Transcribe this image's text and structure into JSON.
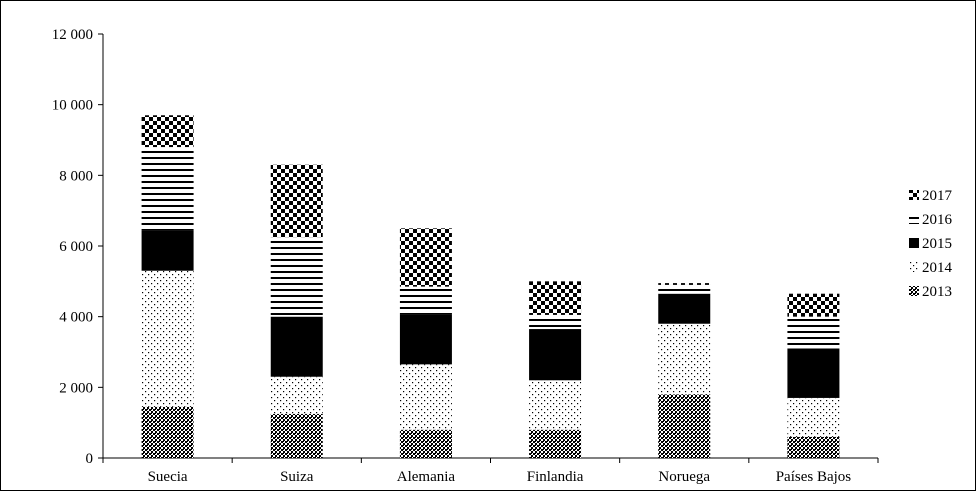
{
  "chart_data": {
    "type": "bar",
    "stacked": true,
    "categories": [
      "Suecia",
      "Suiza",
      "Alemania",
      "Finlandia",
      "Noruega",
      "Países Bajos"
    ],
    "series": [
      {
        "name": "2013",
        "pattern": "dense-dots",
        "values": [
          1450,
          1250,
          800,
          800,
          1800,
          600
        ]
      },
      {
        "name": "2014",
        "pattern": "light-dots",
        "values": [
          3850,
          1050,
          1850,
          1400,
          2000,
          1100
        ]
      },
      {
        "name": "2015",
        "pattern": "solid",
        "values": [
          1150,
          1700,
          1400,
          1450,
          850,
          1400
        ]
      },
      {
        "name": "2016",
        "pattern": "horizontal-lines",
        "values": [
          2350,
          2250,
          800,
          400,
          250,
          900
        ]
      },
      {
        "name": "2017",
        "pattern": "checker",
        "values": [
          900,
          2050,
          1650,
          950,
          50,
          650
        ]
      }
    ],
    "y_ticks": [
      "0",
      "2 000",
      "4 000",
      "6 000",
      "8 000",
      "10 000",
      "12 000"
    ],
    "ylim": [
      0,
      12000
    ],
    "y_step": 2000,
    "legend_position": "right",
    "legend_order": [
      "2017",
      "2016",
      "2015",
      "2014",
      "2013"
    ],
    "grid": false,
    "colors": {
      "ink": "#000000",
      "background": "#ffffff"
    }
  }
}
